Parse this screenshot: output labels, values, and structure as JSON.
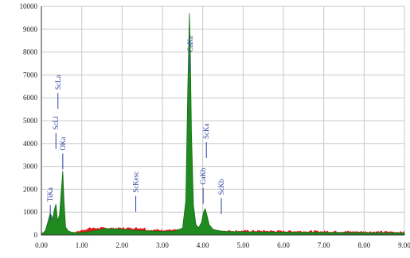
{
  "chart_data": {
    "type": "area",
    "title": "",
    "xlabel": "",
    "ylabel": "",
    "xlim": [
      0,
      9
    ],
    "ylim": [
      0,
      10000
    ],
    "grid": true,
    "x_ticks": [
      "0.00",
      "1.00",
      "2.00",
      "3.00",
      "4.00",
      "5.00",
      "6.00",
      "7.00",
      "8.00",
      "9.00"
    ],
    "y_ticks": [
      "0",
      "1000",
      "2000",
      "3000",
      "4000",
      "5000",
      "6000",
      "7000",
      "8000",
      "9000",
      "10000"
    ],
    "colors": {
      "peak_fill": "#1f8a1f",
      "background_spectrum": "#e01b1b",
      "label": "#2b3fa0",
      "grid": "#c8c8c8"
    },
    "series": [
      {
        "values_x": [
          0.0,
          0.1,
          0.15,
          0.22,
          0.28,
          0.32,
          0.36,
          0.4,
          0.45,
          0.5,
          0.53,
          0.56,
          0.6,
          0.66,
          0.75,
          0.9,
          1.1,
          1.3,
          1.6,
          2.0,
          2.3,
          2.6,
          3.0,
          3.3,
          3.5,
          3.58,
          3.63,
          3.67,
          3.69,
          3.72,
          3.77,
          3.83,
          3.9,
          3.97,
          4.02,
          4.06,
          4.1,
          4.16,
          4.25,
          4.4,
          4.6,
          5.0,
          6.0,
          7.0,
          8.0,
          9.0
        ],
        "values_y": [
          0,
          200,
          500,
          950,
          700,
          1100,
          1350,
          600,
          900,
          2100,
          2800,
          1500,
          350,
          180,
          120,
          100,
          120,
          180,
          280,
          250,
          200,
          180,
          150,
          170,
          300,
          1500,
          6500,
          9700,
          8200,
          4500,
          1300,
          450,
          320,
          550,
          1000,
          1150,
          900,
          450,
          250,
          180,
          150,
          140,
          120,
          110,
          100,
          90
        ]
      }
    ],
    "peak_labels": [
      {
        "text": "TiKa",
        "x": 0.22,
        "y": 1450
      },
      {
        "text": "ScLl",
        "x": 0.36,
        "y": 4600
      },
      {
        "text": "ScLa",
        "x": 0.41,
        "y": 6350
      },
      {
        "text": "OKa",
        "x": 0.53,
        "y": 3700
      },
      {
        "text": "ScKesc",
        "x": 2.34,
        "y": 1850
      },
      {
        "text": "CaKa",
        "x": 3.69,
        "y": 8000
      },
      {
        "text": "CaKb",
        "x": 4.01,
        "y": 2200
      },
      {
        "text": "ScKa",
        "x": 4.09,
        "y": 4200
      },
      {
        "text": "ScKb",
        "x": 4.46,
        "y": 1750
      }
    ]
  }
}
